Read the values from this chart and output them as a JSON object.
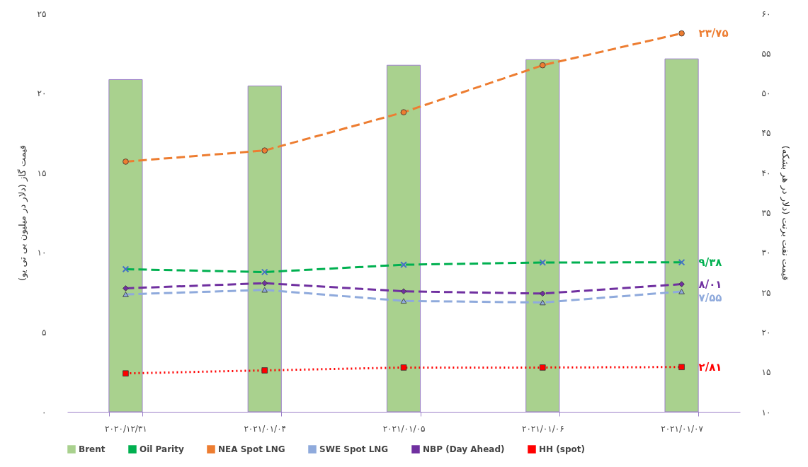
{
  "chart_data": {
    "type": "bar",
    "ylabel": "قیمت گاز (دلار در میلیون بی تی یو)",
    "y2label": "قیمت نفت برنت (دلار در هر بشکه)",
    "categories": [
      "۲۰۲۰/۱۲/۳۱",
      "۲۰۲۱/۰۱/۰۴",
      "۲۰۲۱/۰۱/۰۵",
      "۲۰۲۱/۰۱/۰۶",
      "۲۰۲۱/۰۱/۰۷"
    ],
    "ylim": [
      0,
      25
    ],
    "yticks": [
      {
        "value": 0,
        "label": "۰"
      },
      {
        "value": 5,
        "label": "۵"
      },
      {
        "value": 10,
        "label": "۱۰"
      },
      {
        "value": 15,
        "label": "۱۵"
      },
      {
        "value": 20,
        "label": "۲۰"
      },
      {
        "value": 25,
        "label": "۲۵"
      }
    ],
    "y2lim": [
      10,
      60
    ],
    "y2ticks": [
      {
        "value": 10,
        "label": "۱۰"
      },
      {
        "value": 15,
        "label": "۱۵"
      },
      {
        "value": 20,
        "label": "۲۰"
      },
      {
        "value": 25,
        "label": "۲۵"
      },
      {
        "value": 30,
        "label": "۳۰"
      },
      {
        "value": 35,
        "label": "۳۵"
      },
      {
        "value": 40,
        "label": "۴۰"
      },
      {
        "value": 45,
        "label": "۴۵"
      },
      {
        "value": 50,
        "label": "۵۰"
      },
      {
        "value": 55,
        "label": "۵۵"
      },
      {
        "value": 60,
        "label": "۶۰"
      }
    ],
    "legend": "bottom",
    "series": [
      {
        "name": "Brent",
        "axis": "y2",
        "color": "#a9d18e",
        "values": [
          51.7,
          50.9,
          53.5,
          54.2,
          54.3
        ]
      },
      {
        "name": "Oil Parity",
        "type": "line",
        "color": "#00b050",
        "marker": "cross",
        "line_style": "dashed",
        "values": [
          8.95,
          8.77,
          9.23,
          9.37,
          9.38
        ],
        "value_labels": [
          null,
          null,
          null,
          null,
          "۹/۳۸"
        ]
      },
      {
        "name": "NEA Spot LNG",
        "type": "line",
        "color": "#ed7d31",
        "marker": "circle",
        "line_style": "dashed",
        "values": [
          15.7,
          16.4,
          18.8,
          21.75,
          23.75
        ],
        "value_labels": [
          null,
          null,
          null,
          null,
          "۲۳/۷۵"
        ]
      },
      {
        "name": "SWE Spot LNG",
        "type": "line",
        "color": "#8faadc",
        "marker": "triangle",
        "line_style": "dashed",
        "values": [
          7.37,
          7.65,
          6.96,
          6.86,
          7.55
        ],
        "value_labels": [
          null,
          null,
          null,
          null,
          "۷/۵۵"
        ]
      },
      {
        "name": "NBP (Day Ahead)",
        "type": "line",
        "color": "#7030a0",
        "marker": "diamond",
        "line_style": "dashed",
        "values": [
          7.75,
          8.07,
          7.56,
          7.42,
          8.01
        ],
        "value_labels": [
          null,
          null,
          null,
          null,
          "۸/۰۱"
        ]
      },
      {
        "name": "HH (spot)",
        "type": "line",
        "color": "#ff0000",
        "marker": "square",
        "line_style": "dotted",
        "values": [
          2.41,
          2.6,
          2.78,
          2.78,
          2.81
        ],
        "value_labels": [
          null,
          null,
          null,
          null,
          "۲/۸۱"
        ]
      }
    ]
  }
}
